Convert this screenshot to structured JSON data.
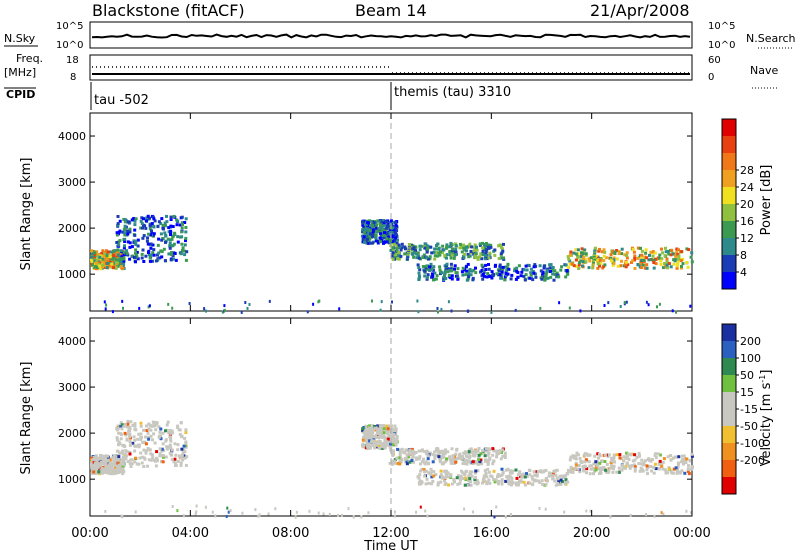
{
  "header": {
    "title": "Blackstone (fitACF)",
    "beam": "Beam 14",
    "date": "21/Apr/2008"
  },
  "strips": {
    "nsky_label": "N.Sky",
    "nsky_ticks": [
      "10^5",
      "10^0"
    ],
    "nsearch_label": "N.Search",
    "nsearch_ticks": [
      "10^5",
      "10^0"
    ],
    "freq_label": "Freq.",
    "freq_unit": "[MHz]",
    "freq_ticks": [
      "18",
      "8"
    ],
    "nave_label": "Nave",
    "nave_ticks": [
      "60",
      "0"
    ],
    "cpid_label": "CPID",
    "cpid_segments": [
      {
        "start_hour": 0,
        "label": "tau -502"
      },
      {
        "start_hour": 12,
        "label": "themis (tau) 3310"
      }
    ]
  },
  "chart_data": [
    {
      "type": "heatmap",
      "quantity": "Power",
      "xlabel": "",
      "ylabel": "Slant Range [km]",
      "xlim_hours": [
        0,
        24
      ],
      "ylim": [
        200,
        4500
      ],
      "yticks": [
        1000,
        2000,
        3000,
        4000
      ],
      "colorbar": {
        "label": "Power [dB]",
        "ticks": [
          "4",
          "8",
          "12",
          "16",
          "20",
          "24",
          "28"
        ],
        "colors": [
          "#0000ff",
          "#1a3cb4",
          "#2e8a8a",
          "#3c9a50",
          "#90c040",
          "#f0e020",
          "#f0a020",
          "#f07818",
          "#e84010",
          "#e00000"
        ]
      },
      "echo_regions": [
        {
          "t0": 0.0,
          "t1": 1.3,
          "r0": 1150,
          "r1": 1550,
          "level": "high"
        },
        {
          "t0": 1.0,
          "t1": 3.8,
          "r0": 1300,
          "r1": 2300,
          "level": "low"
        },
        {
          "t0": 10.8,
          "t1": 12.2,
          "r0": 1700,
          "r1": 2200,
          "level": "low"
        },
        {
          "t0": 11.9,
          "t1": 16.5,
          "r0": 1350,
          "r1": 1700,
          "level": "mid"
        },
        {
          "t0": 13.0,
          "t1": 19.0,
          "r0": 900,
          "r1": 1250,
          "level": "low"
        },
        {
          "t0": 19.0,
          "t1": 24.0,
          "r0": 1150,
          "r1": 1600,
          "level": "high"
        },
        {
          "t0": 0.0,
          "t1": 24.0,
          "r0": 200,
          "r1": 450,
          "level": "sparse"
        }
      ]
    },
    {
      "type": "heatmap",
      "quantity": "Velocity",
      "xlabel": "Time UT",
      "ylabel": "Slant Range [km]",
      "xlim_hours": [
        0,
        24
      ],
      "ylim": [
        200,
        4500
      ],
      "yticks": [
        1000,
        2000,
        3000,
        4000
      ],
      "xticks": [
        "00:00",
        "04:00",
        "08:00",
        "12:00",
        "16:00",
        "20:00",
        "00:00"
      ],
      "colorbar": {
        "label": "Velocity [m s-1]",
        "ticks": [
          "200",
          "100",
          "50",
          "15",
          "-15",
          "-50",
          "-100",
          "-200"
        ],
        "colors": [
          "#1a30a0",
          "#2a60c0",
          "#2e8a50",
          "#70c040",
          "#c8c8c0",
          "#c8c8c0",
          "#f0c030",
          "#f09020",
          "#f06010",
          "#e00000"
        ]
      }
    }
  ]
}
